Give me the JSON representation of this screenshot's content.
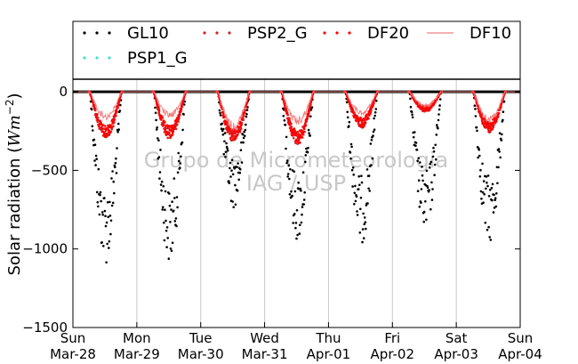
{
  "chart_data": {
    "type": "scatter",
    "title": "",
    "xlabel": "",
    "ylabel": "Solar radiation (Wm⁻²)",
    "ylabel_parts": {
      "text": "Solar radiation (",
      "unit": "Wm",
      "exp": "−2",
      "close": ")"
    },
    "ylim": [
      -1500,
      80
    ],
    "yticks": [
      0,
      -500,
      -1000,
      -1500
    ],
    "ytick_labels": [
      "0",
      "−500",
      "−1000",
      "−1500"
    ],
    "xlim": [
      0,
      7
    ],
    "xticks": [
      0,
      1,
      2,
      3,
      4,
      5,
      6,
      7
    ],
    "xtick_labels": [
      [
        "Sun",
        "Mar-28"
      ],
      [
        "Mon",
        "Mar-29"
      ],
      [
        "Tue",
        "Mar-30"
      ],
      [
        "Wed",
        "Mar-31"
      ],
      [
        "Thu",
        "Apr-01"
      ],
      [
        "Fri",
        "Apr-02"
      ],
      [
        "Sat",
        "Apr-03"
      ],
      [
        "Sun",
        "Apr-04"
      ]
    ],
    "grid": "vertical",
    "legend_position": "top",
    "watermark": [
      "Grupo de Micrometeorologia",
      "IAG / USP"
    ],
    "series": [
      {
        "name": "GL10",
        "style": "dot",
        "color": "#000000",
        "daily_min": [
          -1100,
          -1100,
          -740,
          -960,
          -970,
          -910,
          -970
        ]
      },
      {
        "name": "PSP2_G",
        "style": "dot",
        "color": "#d62020",
        "daily_min": [
          -300,
          -300,
          -330,
          -340,
          -230,
          -130,
          -260
        ]
      },
      {
        "name": "DF20",
        "style": "dot",
        "color": "#ff0000",
        "daily_min": [
          -290,
          -290,
          -310,
          -330,
          -220,
          -120,
          -250
        ]
      },
      {
        "name": "DF10",
        "style": "line",
        "color": "#f08080",
        "daily_min": [
          -180,
          -170,
          -250,
          -210,
          -150,
          -100,
          -200
        ]
      },
      {
        "name": "PSP1_G",
        "style": "dot",
        "color": "#40e0d0",
        "daily_min": [
          0,
          0,
          0,
          0,
          0,
          0,
          0
        ]
      }
    ]
  }
}
